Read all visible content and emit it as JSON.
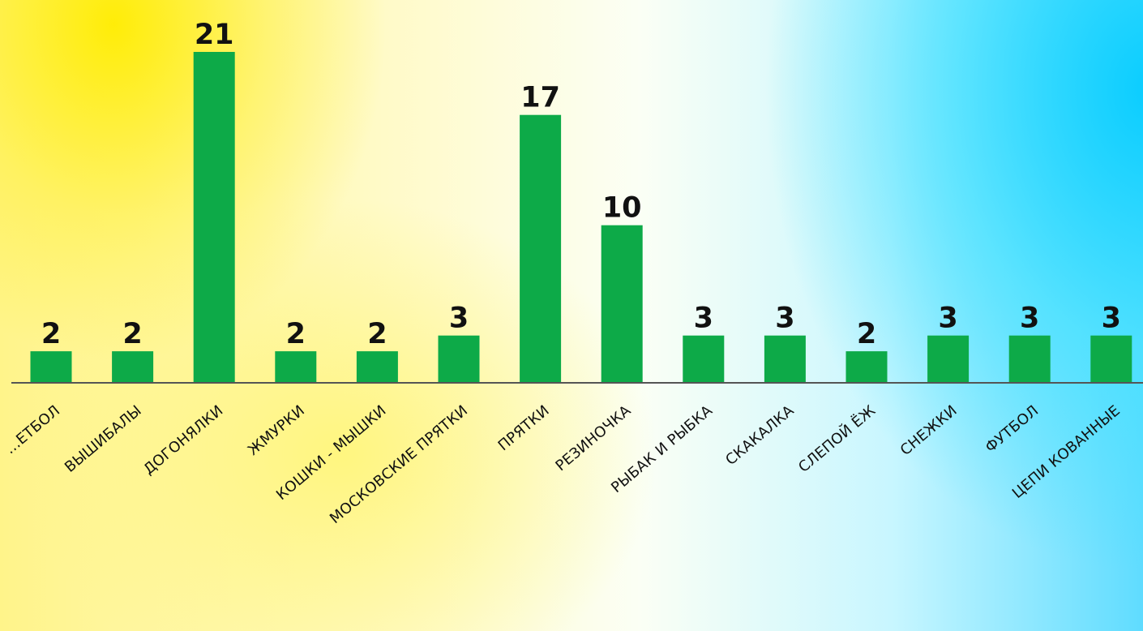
{
  "chart_data": {
    "type": "bar",
    "title": "",
    "xlabel": "",
    "ylabel": "",
    "ylim": [
      0,
      21
    ],
    "grid": false,
    "bar_color": "#0daa48",
    "categories": [
      "…ЕТБОЛ",
      "ВЫШИБАЛЫ",
      "ДОГОНЯЛКИ",
      "ЖМУРКИ",
      "КОШКИ - МЫШКИ",
      "МОСКОВСКИЕ ПРЯТКИ",
      "ПРЯТКИ",
      "РЕЗИНОЧКА",
      "РЫБАК И РЫБКА",
      "СКАКАЛКА",
      "СЛЕПОЙ ЁЖ",
      "СНЕЖКИ",
      "ФУТБОЛ",
      "ЦЕПИ КОВАННЫЕ"
    ],
    "values": [
      2,
      2,
      21,
      2,
      2,
      3,
      17,
      10,
      3,
      3,
      2,
      3,
      3,
      3
    ],
    "data_labels": [
      "2",
      "2",
      "21",
      "2",
      "2",
      "3",
      "17",
      "10",
      "3",
      "3",
      "2",
      "3",
      "3",
      "3"
    ]
  }
}
